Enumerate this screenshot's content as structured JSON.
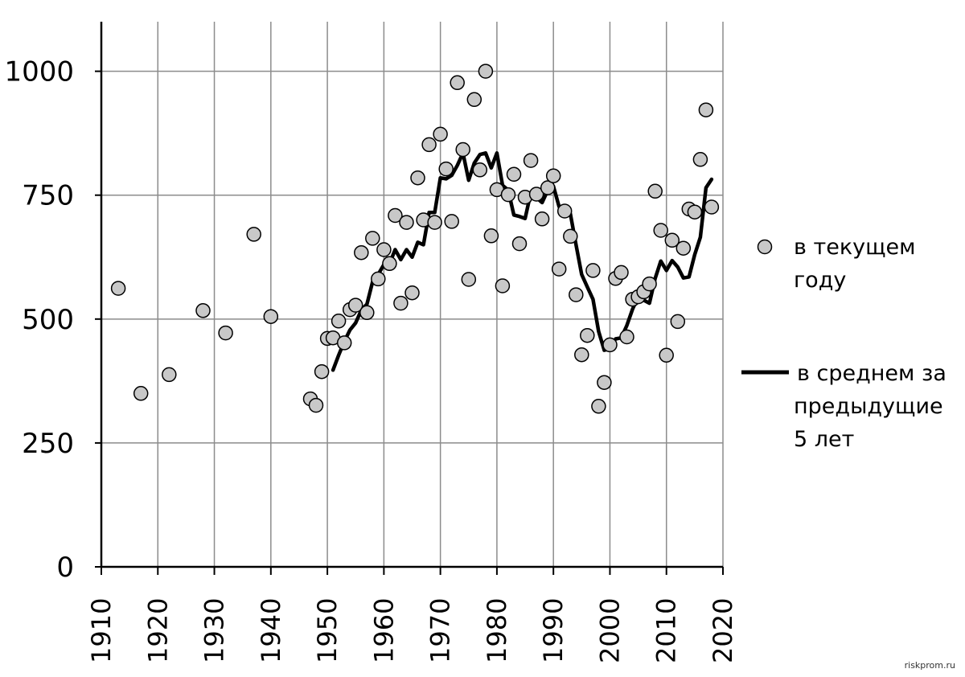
{
  "chart_data": {
    "type": "scatter",
    "title": "",
    "xlabel": "",
    "ylabel": "",
    "xlim": [
      1910,
      2020
    ],
    "ylim": [
      0,
      1100
    ],
    "xticks": [
      "1910",
      "1920",
      "1930",
      "1940",
      "1950",
      "1960",
      "1970",
      "1980",
      "1990",
      "2000",
      "2010",
      "2020"
    ],
    "yticks": [
      "0",
      "250",
      "500",
      "750",
      "1000"
    ],
    "grid": true,
    "legend_position": "right",
    "series": [
      {
        "name": "в текущем году",
        "type": "scatter",
        "color": "#c8c8c8",
        "points": [
          [
            1913,
            562
          ],
          [
            1917,
            350
          ],
          [
            1922,
            388
          ],
          [
            1928,
            517
          ],
          [
            1932,
            472
          ],
          [
            1937,
            671
          ],
          [
            1940,
            505
          ],
          [
            1947,
            339
          ],
          [
            1948,
            326
          ],
          [
            1949,
            394
          ],
          [
            1950,
            461
          ],
          [
            1951,
            462
          ],
          [
            1952,
            496
          ],
          [
            1953,
            452
          ],
          [
            1954,
            519
          ],
          [
            1955,
            528
          ],
          [
            1956,
            634
          ],
          [
            1957,
            513
          ],
          [
            1958,
            663
          ],
          [
            1959,
            581
          ],
          [
            1960,
            640
          ],
          [
            1961,
            612
          ],
          [
            1962,
            709
          ],
          [
            1963,
            532
          ],
          [
            1964,
            695
          ],
          [
            1965,
            553
          ],
          [
            1966,
            785
          ],
          [
            1967,
            700
          ],
          [
            1968,
            852
          ],
          [
            1969,
            695
          ],
          [
            1970,
            873
          ],
          [
            1971,
            803
          ],
          [
            1972,
            697
          ],
          [
            1973,
            977
          ],
          [
            1974,
            842
          ],
          [
            1975,
            580
          ],
          [
            1976,
            943
          ],
          [
            1977,
            801
          ],
          [
            1978,
            1000
          ],
          [
            1979,
            668
          ],
          [
            1980,
            761
          ],
          [
            1981,
            567
          ],
          [
            1982,
            751
          ],
          [
            1983,
            792
          ],
          [
            1984,
            652
          ],
          [
            1985,
            746
          ],
          [
            1986,
            820
          ],
          [
            1987,
            752
          ],
          [
            1988,
            702
          ],
          [
            1989,
            765
          ],
          [
            1990,
            789
          ],
          [
            1991,
            601
          ],
          [
            1992,
            718
          ],
          [
            1993,
            667
          ],
          [
            1994,
            549
          ],
          [
            1995,
            428
          ],
          [
            1996,
            467
          ],
          [
            1997,
            598
          ],
          [
            1998,
            324
          ],
          [
            1999,
            372
          ],
          [
            2000,
            448
          ],
          [
            2001,
            582
          ],
          [
            2002,
            594
          ],
          [
            2003,
            464
          ],
          [
            2004,
            540
          ],
          [
            2005,
            545
          ],
          [
            2006,
            555
          ],
          [
            2007,
            571
          ],
          [
            2008,
            758
          ],
          [
            2009,
            679
          ],
          [
            2010,
            427
          ],
          [
            2011,
            659
          ],
          [
            2012,
            495
          ],
          [
            2013,
            643
          ],
          [
            2014,
            722
          ],
          [
            2015,
            716
          ],
          [
            2016,
            822
          ],
          [
            2017,
            922
          ],
          [
            2018,
            726
          ]
        ]
      },
      {
        "name": "в среднем за предыдущие 5 лет",
        "type": "line",
        "color": "#000000",
        "points": [
          [
            1951,
            397
          ],
          [
            1952,
            427
          ],
          [
            1953,
            455
          ],
          [
            1954,
            478
          ],
          [
            1955,
            492
          ],
          [
            1956,
            518
          ],
          [
            1957,
            530
          ],
          [
            1958,
            575
          ],
          [
            1959,
            590
          ],
          [
            1960,
            610
          ],
          [
            1961,
            612
          ],
          [
            1962,
            640
          ],
          [
            1963,
            620
          ],
          [
            1964,
            640
          ],
          [
            1965,
            625
          ],
          [
            1966,
            655
          ],
          [
            1967,
            650
          ],
          [
            1968,
            715
          ],
          [
            1969,
            715
          ],
          [
            1970,
            785
          ],
          [
            1971,
            783
          ],
          [
            1972,
            790
          ],
          [
            1973,
            810
          ],
          [
            1974,
            835
          ],
          [
            1975,
            780
          ],
          [
            1976,
            815
          ],
          [
            1977,
            832
          ],
          [
            1978,
            835
          ],
          [
            1979,
            805
          ],
          [
            1980,
            835
          ],
          [
            1981,
            770
          ],
          [
            1982,
            760
          ],
          [
            1983,
            710
          ],
          [
            1984,
            707
          ],
          [
            1985,
            703
          ],
          [
            1986,
            755
          ],
          [
            1987,
            745
          ],
          [
            1988,
            735
          ],
          [
            1989,
            760
          ],
          [
            1990,
            768
          ],
          [
            1991,
            727
          ],
          [
            1992,
            720
          ],
          [
            1993,
            712
          ],
          [
            1994,
            650
          ],
          [
            1995,
            590
          ],
          [
            1996,
            565
          ],
          [
            1997,
            540
          ],
          [
            1998,
            475
          ],
          [
            1999,
            437
          ],
          [
            2000,
            440
          ],
          [
            2001,
            460
          ],
          [
            2002,
            462
          ],
          [
            2003,
            487
          ],
          [
            2004,
            520
          ],
          [
            2005,
            545
          ],
          [
            2006,
            538
          ],
          [
            2007,
            532
          ],
          [
            2008,
            582
          ],
          [
            2009,
            617
          ],
          [
            2010,
            598
          ],
          [
            2011,
            618
          ],
          [
            2012,
            605
          ],
          [
            2013,
            583
          ],
          [
            2014,
            585
          ],
          [
            2015,
            630
          ],
          [
            2016,
            665
          ],
          [
            2017,
            765
          ],
          [
            2018,
            782
          ]
        ]
      }
    ]
  },
  "legend": {
    "marker_label_lines": [
      "в текущем",
      "году"
    ],
    "line_label_lines": [
      "в среднем за",
      "предыдущие",
      "5 лет"
    ]
  },
  "watermark": "riskprom.ru"
}
